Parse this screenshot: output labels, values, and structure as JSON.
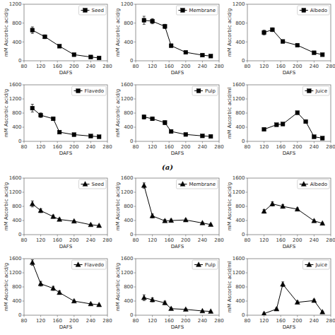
{
  "chart_data": [
    {
      "type": "line",
      "xlabel": "DAFS",
      "ylabel": "mM Ascorbic acid/g",
      "xlim": [
        80,
        280
      ],
      "xticks": [
        80,
        120,
        160,
        200,
        240,
        280
      ],
      "ylim": [
        0,
        1200
      ],
      "yticks": [
        0,
        400,
        800,
        1200
      ],
      "grid": false,
      "legend": "upper right",
      "x": [
        100,
        130,
        165,
        200,
        240,
        260
      ],
      "series": [
        {
          "name": "Seed",
          "color": "black",
          "marker": "square",
          "line_style": "solid",
          "values": [
            650,
            510,
            310,
            130,
            80,
            60
          ],
          "yerr": [
            70,
            40,
            20,
            15,
            10,
            8
          ]
        }
      ]
    },
    {
      "type": "line",
      "xlabel": "DAFS",
      "ylabel": "mM Ascorbic acid/g",
      "xlim": [
        80,
        280
      ],
      "xticks": [
        80,
        120,
        160,
        200,
        240,
        280
      ],
      "ylim": [
        0,
        1200
      ],
      "yticks": [
        0,
        400,
        800,
        1200
      ],
      "grid": false,
      "legend": "upper right",
      "x": [
        100,
        120,
        150,
        165,
        200,
        240,
        260
      ],
      "series": [
        {
          "name": "Membrane",
          "color": "black",
          "marker": "square",
          "line_style": "solid",
          "values": [
            860,
            840,
            730,
            320,
            180,
            120,
            100
          ],
          "yerr": [
            85,
            55,
            45,
            30,
            15,
            12,
            10
          ]
        }
      ]
    },
    {
      "type": "line",
      "xlabel": "DAFS",
      "ylabel": "mM Ascorbic acid/g",
      "xlim": [
        80,
        280
      ],
      "xticks": [
        80,
        120,
        160,
        200,
        240,
        280
      ],
      "ylim": [
        0,
        1200
      ],
      "yticks": [
        0,
        400,
        800,
        1200
      ],
      "grid": false,
      "legend": "upper right",
      "x": [
        120,
        140,
        165,
        200,
        240,
        260
      ],
      "series": [
        {
          "name": "Albedo",
          "color": "black",
          "marker": "square",
          "line_style": "solid",
          "values": [
            600,
            660,
            410,
            330,
            170,
            130
          ],
          "yerr": [
            50,
            40,
            30,
            25,
            18,
            15
          ]
        }
      ]
    },
    {
      "type": "line",
      "xlabel": "DAFS",
      "ylabel": "mM Ascorbic acid/g",
      "xlim": [
        80,
        280
      ],
      "xticks": [
        80,
        120,
        160,
        200,
        240,
        280
      ],
      "ylim": [
        0,
        1600
      ],
      "yticks": [
        0,
        400,
        800,
        1200,
        1600
      ],
      "grid": false,
      "legend": "upper right",
      "x": [
        100,
        120,
        150,
        165,
        200,
        240,
        260
      ],
      "series": [
        {
          "name": "Flavedo",
          "color": "black",
          "marker": "square",
          "line_style": "solid",
          "values": [
            940,
            740,
            640,
            260,
            190,
            150,
            130
          ],
          "yerr": [
            110,
            65,
            50,
            25,
            18,
            12,
            10
          ]
        }
      ]
    },
    {
      "type": "line",
      "xlabel": "DAFS",
      "ylabel": "mM Ascorbic acid/g",
      "xlim": [
        80,
        280
      ],
      "xticks": [
        80,
        120,
        160,
        200,
        240,
        280
      ],
      "ylim": [
        0,
        1600
      ],
      "yticks": [
        0,
        400,
        800,
        1200,
        1600
      ],
      "grid": false,
      "legend": "upper right",
      "annotation": "(a)",
      "x": [
        100,
        120,
        150,
        165,
        200,
        240,
        260
      ],
      "series": [
        {
          "name": "Pulp",
          "color": "black",
          "marker": "square",
          "line_style": "solid",
          "values": [
            690,
            640,
            530,
            280,
            195,
            155,
            140
          ],
          "yerr": [
            55,
            50,
            55,
            50,
            22,
            18,
            12
          ]
        }
      ]
    },
    {
      "type": "line",
      "xlabel": "DAFS",
      "ylabel": "mM Ascorbic acid/ml",
      "xlim": [
        80,
        280
      ],
      "xticks": [
        80,
        120,
        160,
        200,
        240,
        280
      ],
      "ylim": [
        0,
        1600
      ],
      "yticks": [
        0,
        400,
        800,
        1200,
        1600
      ],
      "grid": false,
      "legend": "upper right",
      "x": [
        120,
        150,
        165,
        200,
        220,
        240,
        260
      ],
      "series": [
        {
          "name": "Juice",
          "color": "black",
          "marker": "square",
          "line_style": "solid",
          "values": [
            340,
            470,
            490,
            810,
            560,
            130,
            90
          ],
          "yerr": [
            25,
            30,
            40,
            38,
            38,
            15,
            10
          ]
        }
      ]
    },
    {
      "type": "line",
      "xlabel": "DAFS",
      "ylabel": "mM Ascorbic acid/g",
      "xlim": [
        80,
        280
      ],
      "xticks": [
        80,
        120,
        160,
        200,
        240,
        280
      ],
      "ylim": [
        0,
        1600
      ],
      "yticks": [
        0,
        400,
        800,
        1200,
        1600
      ],
      "grid": false,
      "legend": "upper right",
      "x": [
        100,
        120,
        150,
        165,
        200,
        240,
        260
      ],
      "series": [
        {
          "name": "Seed",
          "color": "black",
          "marker": "triangle",
          "line_style": "solid",
          "values": [
            870,
            680,
            510,
            430,
            380,
            280,
            255
          ],
          "yerr": [
            85,
            55,
            45,
            35,
            28,
            22,
            18
          ]
        }
      ]
    },
    {
      "type": "line",
      "xlabel": "DAFS",
      "ylabel": "mM Ascorbic acid/g",
      "xlim": [
        80,
        280
      ],
      "xticks": [
        80,
        120,
        160,
        200,
        240,
        280
      ],
      "ylim": [
        0,
        1600
      ],
      "yticks": [
        0,
        400,
        800,
        1200,
        1600
      ],
      "grid": false,
      "legend": "upper right",
      "x": [
        100,
        120,
        150,
        165,
        200,
        240,
        260
      ],
      "series": [
        {
          "name": "Membrane",
          "color": "black",
          "marker": "triangle",
          "line_style": "solid",
          "values": [
            1390,
            530,
            390,
            400,
            415,
            330,
            285
          ],
          "yerr": [
            75,
            55,
            38,
            38,
            28,
            22,
            18
          ]
        }
      ]
    },
    {
      "type": "line",
      "xlabel": "DAFS",
      "ylabel": "mM Ascorbic acid/g",
      "xlim": [
        80,
        280
      ],
      "xticks": [
        80,
        120,
        160,
        200,
        240,
        280
      ],
      "ylim": [
        0,
        1600
      ],
      "yticks": [
        0,
        400,
        800,
        1200,
        1600
      ],
      "grid": false,
      "legend": "upper right",
      "x": [
        120,
        140,
        165,
        200,
        240,
        260
      ],
      "series": [
        {
          "name": "Albedo",
          "color": "black",
          "marker": "triangle",
          "line_style": "solid",
          "values": [
            660,
            870,
            800,
            720,
            390,
            320
          ],
          "yerr": [
            48,
            60,
            52,
            38,
            28,
            22
          ]
        }
      ]
    },
    {
      "type": "line",
      "xlabel": "DAFS",
      "ylabel": "mM Ascorbic acid/g",
      "xlim": [
        80,
        280
      ],
      "xticks": [
        80,
        120,
        160,
        200,
        240,
        280
      ],
      "ylim": [
        0,
        1600
      ],
      "yticks": [
        0,
        400,
        800,
        1200,
        1600
      ],
      "grid": false,
      "legend": "upper right",
      "x": [
        100,
        120,
        150,
        165,
        200,
        240,
        260
      ],
      "series": [
        {
          "name": "Flavedo",
          "color": "black",
          "marker": "triangle",
          "line_style": "solid",
          "values": [
            1490,
            890,
            760,
            640,
            400,
            320,
            295
          ],
          "yerr": [
            78,
            68,
            58,
            48,
            28,
            22,
            18
          ]
        }
      ]
    },
    {
      "type": "line",
      "xlabel": "DAFS",
      "ylabel": "mM Ascorbic acid/g",
      "xlim": [
        80,
        280
      ],
      "xticks": [
        80,
        120,
        160,
        200,
        240,
        280
      ],
      "ylim": [
        0,
        1600
      ],
      "yticks": [
        0,
        400,
        800,
        1200,
        1600
      ],
      "grid": false,
      "legend": "upper right",
      "x": [
        100,
        120,
        150,
        165,
        200,
        240,
        260
      ],
      "series": [
        {
          "name": "Pulp",
          "color": "black",
          "marker": "triangle",
          "line_style": "solid",
          "values": [
            495,
            435,
            350,
            185,
            165,
            120,
            108
          ],
          "yerr": [
            82,
            58,
            48,
            28,
            18,
            12,
            8
          ]
        }
      ]
    },
    {
      "type": "line",
      "xlabel": "DAFS",
      "ylabel": "mM Ascorbic acid/ml",
      "xlim": [
        80,
        280
      ],
      "xticks": [
        80,
        120,
        160,
        200,
        240,
        280
      ],
      "ylim": [
        0,
        1600
      ],
      "yticks": [
        0,
        400,
        800,
        1200,
        1600
      ],
      "grid": false,
      "legend": "upper right",
      "x": [
        120,
        150,
        165,
        200,
        240,
        260
      ],
      "series": [
        {
          "name": "Juice",
          "color": "black",
          "marker": "triangle",
          "line_style": "solid",
          "values": [
            45,
            175,
            875,
            365,
            415,
            90
          ],
          "yerr": [
            18,
            28,
            68,
            38,
            38,
            18
          ]
        }
      ]
    }
  ]
}
